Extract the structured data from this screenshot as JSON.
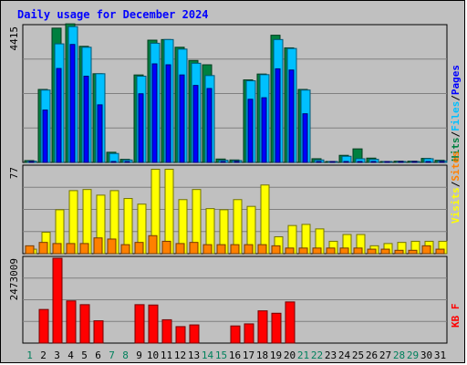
{
  "chart_data": {
    "type": "bar",
    "title": "Daily usage for December 2024",
    "days": [
      "1",
      "2",
      "3",
      "4",
      "5",
      "6",
      "7",
      "8",
      "9",
      "10",
      "11",
      "12",
      "13",
      "14",
      "15",
      "16",
      "17",
      "18",
      "19",
      "20",
      "21",
      "22",
      "23",
      "24",
      "25",
      "26",
      "27",
      "28",
      "29",
      "30",
      "31"
    ],
    "weekend_days": [
      1,
      7,
      8,
      14,
      15,
      21,
      22,
      28,
      29
    ],
    "colors": {
      "hits": "#008040",
      "files": "#00c0ff",
      "pages": "#0000ff",
      "visits": "#ffff00",
      "sites": "#ff8000",
      "kbytes": "#ff0000",
      "weekday_label": "#000000",
      "weekend_label": "#00805c",
      "title": "#0000ff"
    },
    "panels": [
      {
        "id": "hits-files-pages",
        "ymax_label": "4415",
        "ymax": 4415,
        "legend": [
          {
            "text": "Hits",
            "color": "#008040"
          },
          {
            "text": "/",
            "color": "#000000"
          },
          {
            "text": "Files",
            "color": "#00c0ff"
          },
          {
            "text": "/",
            "color": "#000000"
          },
          {
            "text": "Pages",
            "color": "#0000ff"
          }
        ],
        "series": [
          {
            "name": "Hits",
            "values": [
              60,
              2370,
              4360,
              4500,
              3770,
              2880,
              330,
              100,
              2840,
              3970,
              3990,
              3740,
              3310,
              3170,
              110,
              80,
              2680,
              2870,
              4130,
              3720,
              2370,
              120,
              30,
              230,
              440,
              140,
              30,
              40,
              40,
              130,
              70
            ]
          },
          {
            "name": "Files",
            "values": [
              40,
              2350,
              3850,
              4410,
              3740,
              2880,
              290,
              80,
              2800,
              3870,
              3990,
              3680,
              3220,
              2820,
              70,
              60,
              2650,
              2850,
              3990,
              3700,
              2350,
              80,
              20,
              200,
              120,
              100,
              20,
              30,
              30,
              120,
              50
            ]
          },
          {
            "name": "Pages",
            "values": [
              20,
              1700,
              3050,
              3830,
              2800,
              1870,
              10,
              20,
              2230,
              3200,
              3170,
              2840,
              2500,
              2400,
              10,
              10,
              2050,
              2100,
              3040,
              3000,
              1580,
              10,
              10,
              20,
              30,
              30,
              10,
              10,
              10,
              10,
              10
            ]
          }
        ]
      },
      {
        "id": "visits-sites",
        "ymax_label": "77",
        "ymax": 77,
        "legend": [
          {
            "text": "Visits",
            "color": "#ffff00"
          },
          {
            "text": "/",
            "color": "#000000"
          },
          {
            "text": "Sites",
            "color": "#ff8000"
          }
        ],
        "series": [
          {
            "name": "Visits",
            "values": [
              4,
              19,
              39,
              56,
              57,
              52,
              56,
              49,
              44,
              75,
              75,
              48,
              57,
              40,
              39,
              48,
              42,
              61,
              15,
              25,
              26,
              22,
              11,
              17,
              17,
              7,
              9,
              10,
              11,
              11,
              11
            ]
          },
          {
            "name": "Sites",
            "values": [
              7,
              10,
              9,
              9,
              9,
              14,
              13,
              8,
              10,
              16,
              11,
              9,
              10,
              8,
              8,
              8,
              8,
              8,
              7,
              5,
              5,
              5,
              5,
              5,
              5,
              4,
              4,
              3,
              3,
              7,
              4
            ]
          }
        ]
      },
      {
        "id": "kbytes",
        "ymax_label": "2473009",
        "ymax": 2473009,
        "legend": [
          {
            "text": "KB F",
            "color": "#ff0000"
          }
        ],
        "series": [
          {
            "name": "KB F",
            "values": [
              0,
              980000,
              2473009,
              1230000,
              1120000,
              650000,
              0,
              0,
              1120000,
              1110000,
              680000,
              480000,
              530000,
              0,
              0,
              500000,
              560000,
              940000,
              870000,
              1200000,
              0,
              0,
              0,
              0,
              0,
              0,
              0,
              0,
              0,
              0,
              0
            ]
          }
        ]
      }
    ]
  }
}
